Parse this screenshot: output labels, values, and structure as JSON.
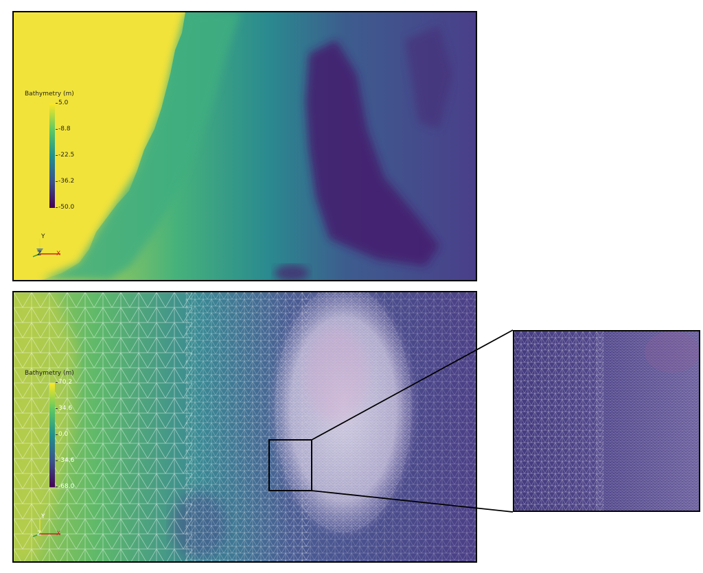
{
  "top_panel": {
    "colorbar": {
      "title": "Bathymetry (m)",
      "ticks": [
        "5.0",
        "-8.8",
        "-22.5",
        "-36.2",
        "-50.0"
      ],
      "colormap": [
        "#fde725",
        "#5ec962",
        "#21918c",
        "#3b528b",
        "#440154"
      ]
    },
    "axes": {
      "y": "Y",
      "z": "Z",
      "x": "X"
    }
  },
  "bottom_panel": {
    "colorbar": {
      "title": "Bathymetry (m)",
      "ticks": [
        "70.2",
        "34.6",
        "0.0",
        "-34.6",
        "-68.0"
      ],
      "colormap": [
        "#fde725",
        "#5ec962",
        "#21918c",
        "#3b528b",
        "#440154"
      ]
    },
    "axes": {
      "y": "Y",
      "z": "Z",
      "x": "X"
    }
  },
  "colors": {
    "land": "#f2e33a",
    "deep": "#481e70",
    "mesh_line": "#ffffff",
    "dense_region": "#c8c4dc",
    "frame": "#000000"
  }
}
